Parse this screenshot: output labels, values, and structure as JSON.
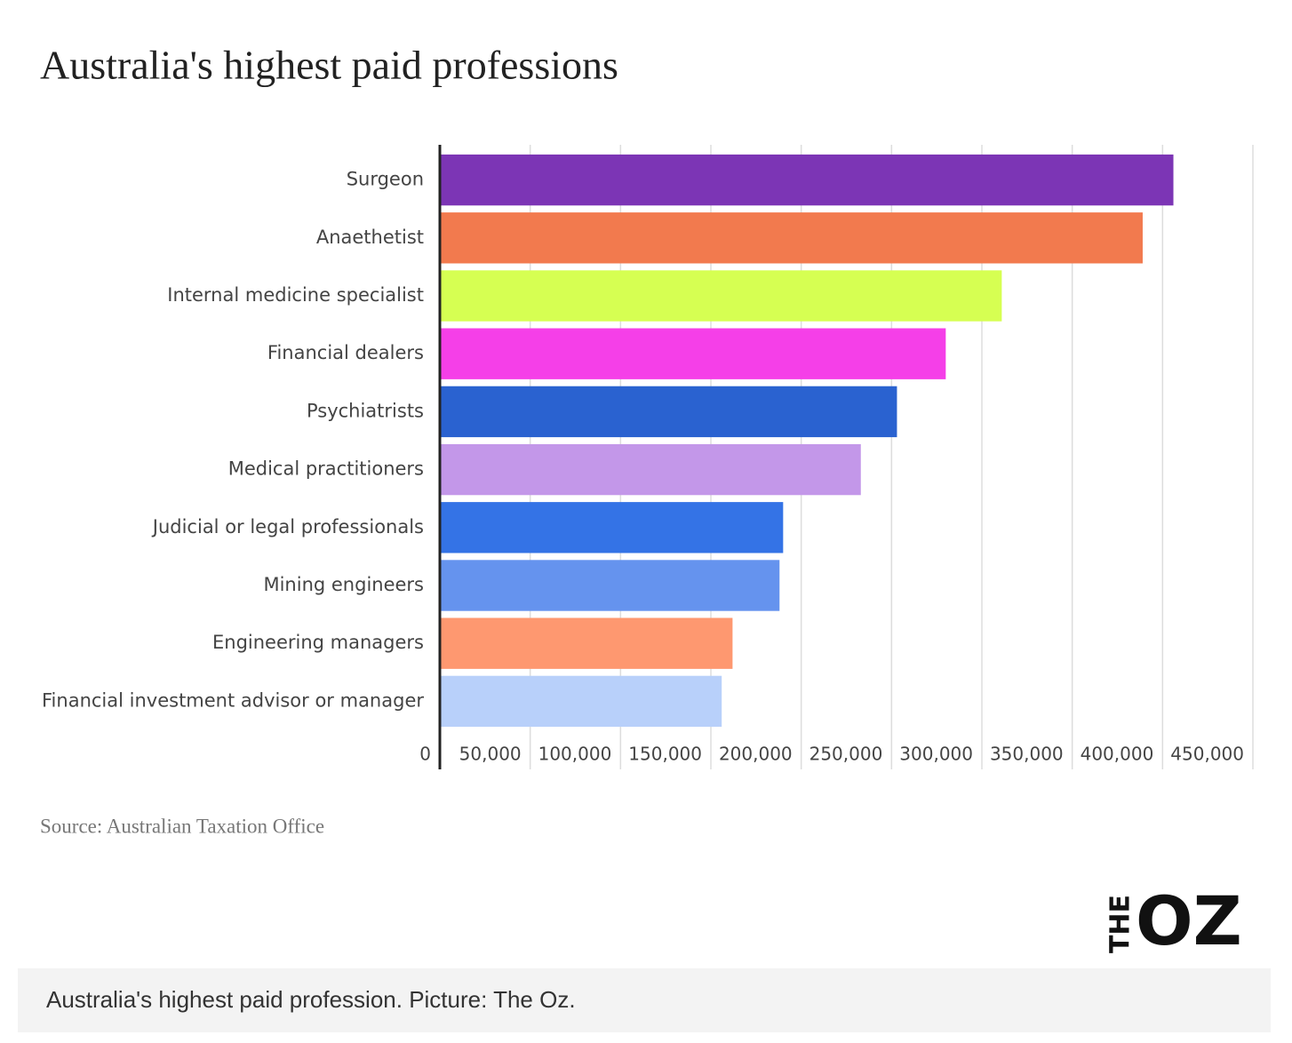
{
  "chart_data": {
    "type": "barh",
    "title": "Australia's highest paid professions",
    "source": "Source: Australian Taxation Office",
    "categories": [
      "Surgeon",
      "Anaethetist",
      "Internal medicine specialist",
      "Financial dealers",
      "Psychiatrists",
      "Medical practitioners",
      "Judicial or legal professionals",
      "Mining engineers",
      "Engineering managers",
      "Financial investment advisor or manager"
    ],
    "values": [
      406000,
      389000,
      311000,
      280000,
      253000,
      233000,
      190000,
      188000,
      162000,
      156000
    ],
    "colors": [
      "#7c35b5",
      "#f27a4e",
      "#d6ff52",
      "#f53fe8",
      "#2a62d0",
      "#c397e9",
      "#3473e6",
      "#6593ee",
      "#fe9870",
      "#b8d0fa"
    ],
    "xlim": [
      0,
      450000
    ],
    "xticks": [
      0,
      {
        "value": 50000,
        "label": "50,000"
      },
      {
        "value": 100000,
        "label": "100,000"
      },
      {
        "value": 150000,
        "label": "150,000"
      },
      {
        "value": 200000,
        "label": "200,000"
      },
      {
        "value": 250000,
        "label": "250,000"
      },
      {
        "value": 300000,
        "label": "300,000"
      },
      {
        "value": 350000,
        "label": "350,000"
      },
      {
        "value": 400000,
        "label": "400,000"
      },
      {
        "value": 450000,
        "label": "450,000"
      }
    ],
    "grid": true
  },
  "logo": {
    "the": "THE",
    "oz": "OZ"
  },
  "caption": "Australia's highest paid profession. Picture: The Oz."
}
